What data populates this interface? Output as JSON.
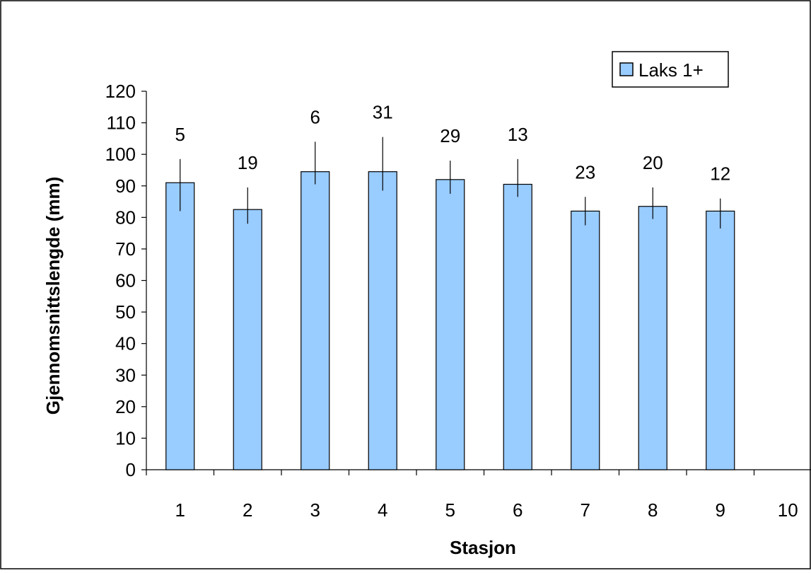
{
  "chart_data": {
    "type": "bar",
    "categories": [
      "1",
      "2",
      "3",
      "4",
      "5",
      "6",
      "7",
      "8",
      "9",
      "10"
    ],
    "series": [
      {
        "name": "Laks 1+",
        "values": [
          91,
          82.5,
          94.5,
          94.5,
          92,
          90.5,
          82,
          83.5,
          82,
          null
        ],
        "error_low": [
          9,
          4.5,
          4,
          6,
          4.5,
          4,
          4.5,
          4,
          5.5,
          null
        ],
        "error_high": [
          7.5,
          7,
          9.5,
          11,
          6,
          8,
          4.5,
          6,
          4,
          null
        ],
        "data_labels": [
          "5",
          "19",
          "6",
          "31",
          "29",
          "13",
          "23",
          "20",
          "12",
          ""
        ],
        "color": "#99ccff"
      }
    ],
    "title": "",
    "xlabel": "Stasjon",
    "ylabel": "Gjennomsnittslengde (mm)",
    "ylim": [
      0,
      120
    ],
    "yticks": [
      "0",
      "10",
      "20",
      "30",
      "40",
      "50",
      "60",
      "70",
      "80",
      "90",
      "100",
      "110",
      "120"
    ],
    "grid": false,
    "legend_position": "top-right"
  }
}
